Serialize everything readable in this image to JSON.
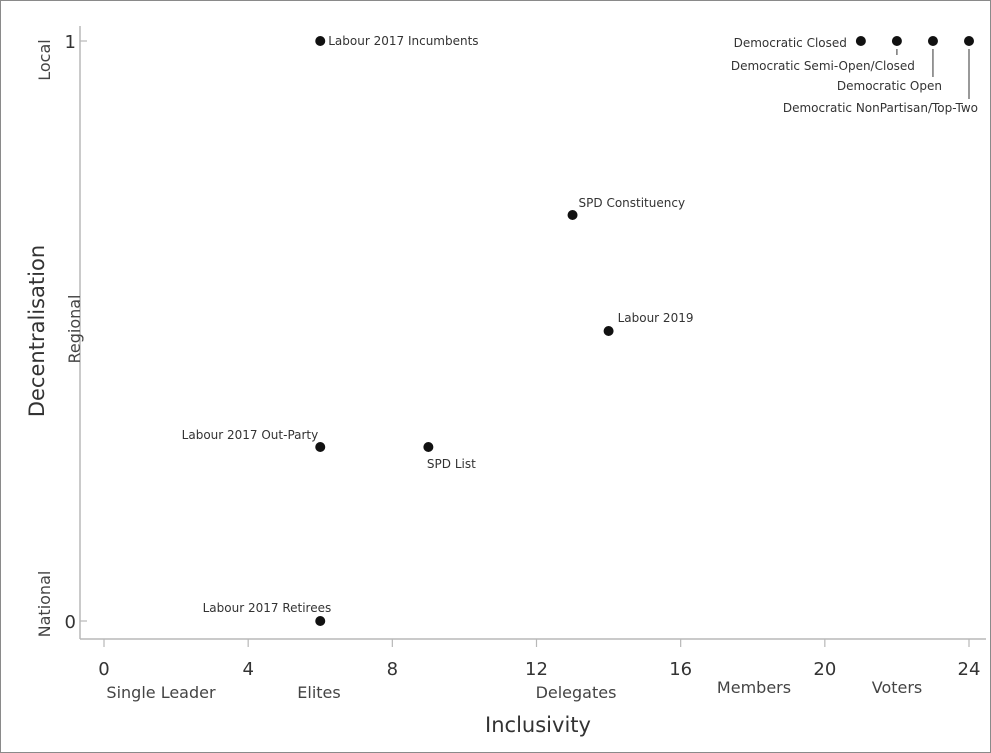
{
  "chart_data": {
    "type": "scatter",
    "title": "",
    "xlabel": "Inclusivity",
    "ylabel": "Decentralisation",
    "xlim": [
      0,
      24
    ],
    "ylim": [
      0,
      1
    ],
    "x_ticks": [
      0,
      4,
      8,
      12,
      16,
      20,
      24
    ],
    "y_ticks": [
      0,
      1
    ],
    "x_categories": [
      {
        "x": 0,
        "label": "Single Leader"
      },
      {
        "x": 6,
        "label": "Elites"
      },
      {
        "x": 12,
        "label": "Delegates"
      },
      {
        "x": 18,
        "label": "Members"
      },
      {
        "x": 22,
        "label": "Voters"
      }
    ],
    "y_categories": [
      {
        "y": 0,
        "label": "National"
      },
      {
        "y": 0.5,
        "label": "Regional"
      },
      {
        "y": 1,
        "label": "Local"
      }
    ],
    "grid": false,
    "legend": "none",
    "point_color": "#111111",
    "points": [
      {
        "x": 6,
        "y": 1,
        "label": "Labour 2017 Incumbents"
      },
      {
        "x": 21,
        "y": 1,
        "label": "Democratic Closed"
      },
      {
        "x": 22,
        "y": 1,
        "label": "Democratic Semi-Open/Closed"
      },
      {
        "x": 23,
        "y": 1,
        "label": "Democratic Open"
      },
      {
        "x": 24,
        "y": 1,
        "label": "Democratic NonPartisan/Top-Two"
      },
      {
        "x": 13,
        "y": 0.7,
        "label": "SPD Constituency"
      },
      {
        "x": 14,
        "y": 0.5,
        "label": "Labour 2019"
      },
      {
        "x": 6,
        "y": 0.3,
        "label": "Labour 2017 Out-Party"
      },
      {
        "x": 9,
        "y": 0.3,
        "label": "SPD List"
      },
      {
        "x": 6,
        "y": 0,
        "label": "Labour 2017 Retirees"
      }
    ]
  }
}
